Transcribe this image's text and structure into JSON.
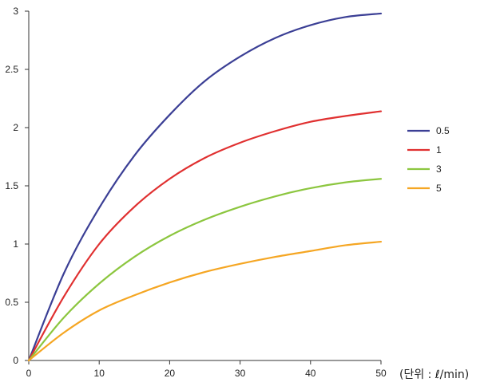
{
  "chart_data": {
    "type": "line",
    "title": "",
    "xlabel": "",
    "ylabel": "",
    "x_unit_label": "(단위 : ℓ/min)",
    "xlim": [
      0,
      50
    ],
    "ylim": [
      0,
      3
    ],
    "x_ticks": [
      0,
      10,
      20,
      30,
      40,
      50
    ],
    "y_ticks": [
      0,
      0.5,
      1,
      1.5,
      2,
      2.5,
      3
    ],
    "grid": false,
    "legend_position": "right",
    "x": [
      0,
      5,
      10,
      15,
      20,
      25,
      30,
      35,
      40,
      45,
      50
    ],
    "series": [
      {
        "name": "0.5",
        "color": "#3b3f95",
        "values": [
          0,
          0.75,
          1.31,
          1.76,
          2.11,
          2.4,
          2.61,
          2.77,
          2.88,
          2.95,
          2.98
        ]
      },
      {
        "name": "1",
        "color": "#e03030",
        "values": [
          0,
          0.55,
          1.0,
          1.32,
          1.56,
          1.74,
          1.87,
          1.97,
          2.05,
          2.1,
          2.14
        ]
      },
      {
        "name": "3",
        "color": "#8cc63f",
        "values": [
          0,
          0.37,
          0.66,
          0.89,
          1.07,
          1.21,
          1.32,
          1.41,
          1.48,
          1.53,
          1.56
        ]
      },
      {
        "name": "5",
        "color": "#f5a623",
        "values": [
          0,
          0.24,
          0.43,
          0.56,
          0.67,
          0.76,
          0.83,
          0.89,
          0.94,
          0.99,
          1.02
        ]
      }
    ]
  }
}
